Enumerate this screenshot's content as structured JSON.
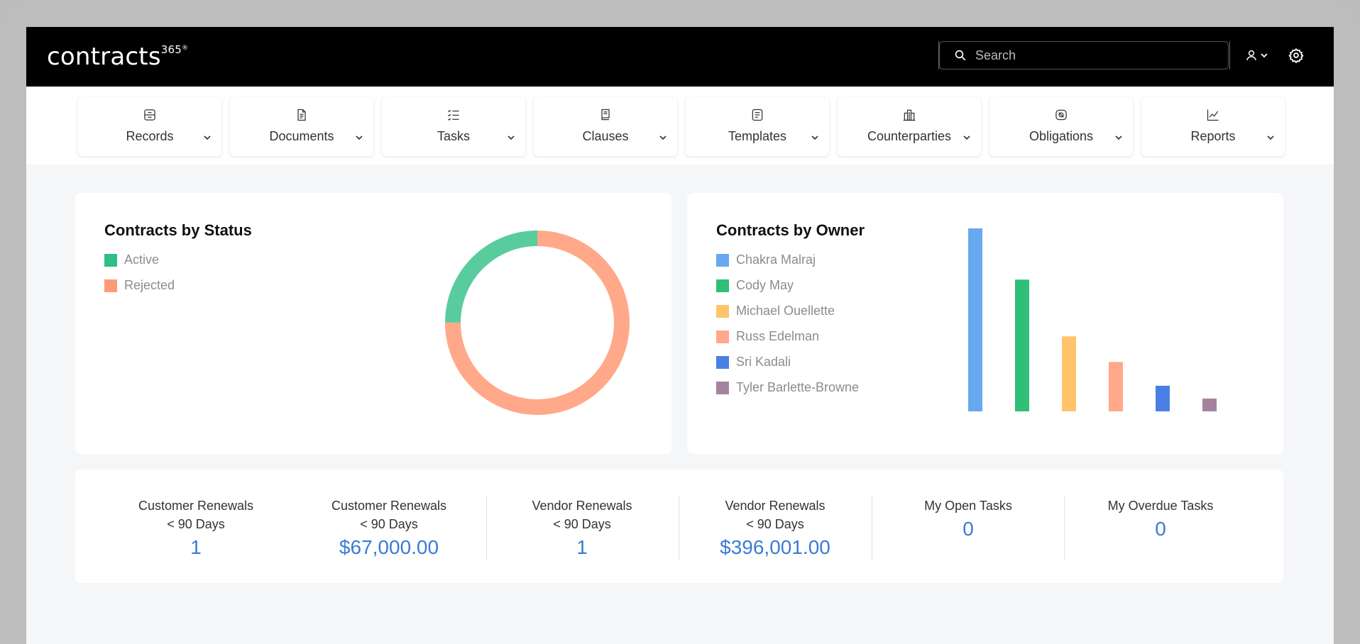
{
  "app": {
    "logo_text": "contracts",
    "logo_sup": "365",
    "logo_reg": "®"
  },
  "search": {
    "placeholder": "Search",
    "value": ""
  },
  "nav": {
    "items": [
      {
        "label": "Records",
        "icon": "records-icon"
      },
      {
        "label": "Documents",
        "icon": "document-icon"
      },
      {
        "label": "Tasks",
        "icon": "tasks-icon"
      },
      {
        "label": "Clauses",
        "icon": "clauses-icon"
      },
      {
        "label": "Templates",
        "icon": "templates-icon"
      },
      {
        "label": "Counterparties",
        "icon": "building-icon"
      },
      {
        "label": "Obligations",
        "icon": "obligations-icon"
      },
      {
        "label": "Reports",
        "icon": "line-chart-icon"
      }
    ]
  },
  "status_card": {
    "title": "Contracts by Status"
  },
  "owner_card": {
    "title": "Contracts by Owner"
  },
  "colors": {
    "active": "#2fbf86",
    "rejected": "#ff9a76",
    "chakra": "#67a8ef",
    "cody": "#2fbf78",
    "michael": "#ffc46b",
    "russ": "#ffa98a",
    "sri": "#4a7fe6",
    "tyler": "#a5839f",
    "accent": "#3a7bd5"
  },
  "chart_data": [
    {
      "type": "pie",
      "title": "Contracts by Status",
      "categories": [
        "Active",
        "Rejected"
      ],
      "values": [
        25,
        75
      ],
      "donut": true,
      "legend": "top-left"
    },
    {
      "type": "bar",
      "title": "Contracts by Owner",
      "categories": [
        "Chakra Malraj",
        "Cody May",
        "Michael Ouellette",
        "Russ Edelman",
        "Sri Kadali",
        "Tyler Barlette-Browne"
      ],
      "values": [
        100,
        72,
        41,
        27,
        14,
        7
      ],
      "ylim": [
        0,
        100
      ],
      "legend": "left",
      "grid": false
    }
  ],
  "stats": [
    {
      "line1": "Customer Renewals",
      "line2": "< 90 Days",
      "value": "1"
    },
    {
      "line1": "Customer Renewals",
      "line2": "< 90 Days",
      "value": "$67,000.00"
    },
    {
      "line1": "Vendor Renewals",
      "line2": "< 90 Days",
      "value": "1"
    },
    {
      "line1": "Vendor Renewals",
      "line2": "< 90 Days",
      "value": "$396,001.00"
    },
    {
      "line1": "My Open Tasks",
      "line2": "",
      "value": "0"
    },
    {
      "line1": "My Overdue Tasks",
      "line2": "",
      "value": "0"
    }
  ]
}
